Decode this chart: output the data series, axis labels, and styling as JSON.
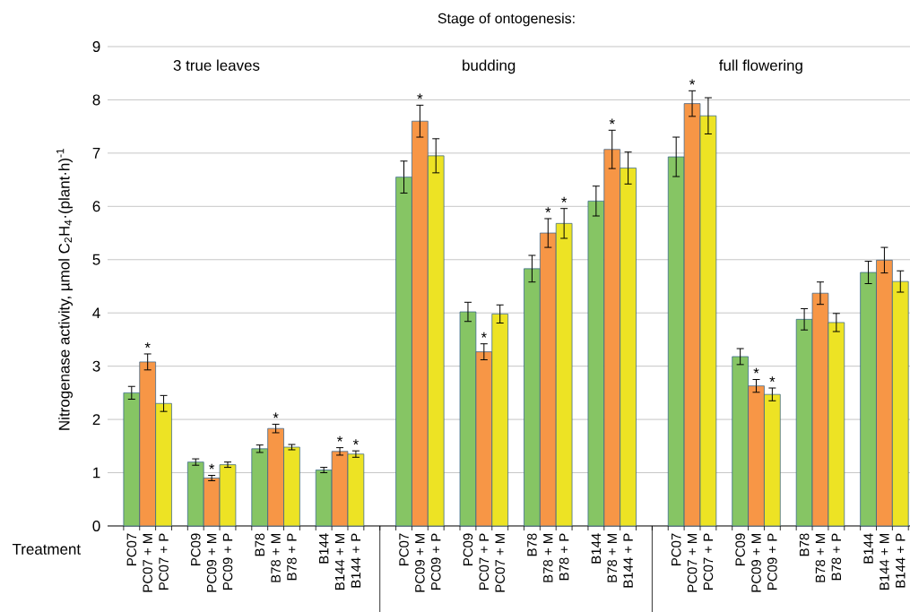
{
  "chart_data": {
    "type": "bar",
    "title": "Stage of ontogenesis:",
    "xlabel": "Treatment",
    "ylabel": "Nitrogenase activity, µmol C$_{2}$H$_{4}$·(plant·h)$^{-1}$",
    "annotations": [
      "3 true leaves",
      "budding",
      "full flowering"
    ],
    "categories": [
      "PC07",
      "PC07 + M",
      "PC07 + P",
      null,
      "PC09",
      "PC09 + M",
      "PC09 + P",
      null,
      "B78",
      "B78 + M",
      "B78 + P",
      null,
      "B144",
      "B144 + M",
      "B144 + P",
      null,
      null,
      "PC07",
      "PC09 + M",
      "PC09 + P",
      null,
      "PC09",
      "PC07 + P",
      "PC07 + M",
      null,
      "B78",
      "B78 + M",
      "B78 + P",
      null,
      "B144",
      "B78 + M",
      "B144 + P",
      null,
      null,
      "PC07",
      "PC07 + M",
      "PC07 + P",
      null,
      "PC09",
      "PC09 + M",
      "PC09 + P",
      null,
      "B78",
      "B78 + M",
      "B78 + P",
      null,
      "B144",
      "B144 + M",
      "B144 + P"
    ],
    "values": [
      2.5,
      3.08,
      2.3,
      null,
      1.2,
      0.9,
      1.15,
      null,
      1.45,
      1.83,
      1.48,
      null,
      1.05,
      1.4,
      1.35,
      null,
      null,
      6.55,
      7.6,
      6.95,
      null,
      4.02,
      3.27,
      3.98,
      null,
      4.83,
      5.5,
      5.68,
      null,
      6.1,
      7.07,
      6.72,
      null,
      null,
      6.93,
      7.93,
      7.7,
      null,
      3.18,
      2.63,
      2.47,
      null,
      3.88,
      4.37,
      3.82,
      null,
      4.76,
      4.99,
      4.59
    ],
    "errors": [
      0.12,
      0.15,
      0.15,
      null,
      0.06,
      0.05,
      0.05,
      null,
      0.07,
      0.08,
      0.05,
      null,
      0.05,
      0.07,
      0.06,
      null,
      null,
      0.3,
      0.3,
      0.32,
      null,
      0.18,
      0.15,
      0.17,
      null,
      0.25,
      0.27,
      0.28,
      null,
      0.28,
      0.36,
      0.3,
      null,
      null,
      0.37,
      0.24,
      0.34,
      null,
      0.15,
      0.12,
      0.12,
      null,
      0.2,
      0.21,
      0.17,
      null,
      0.21,
      0.24,
      0.2
    ],
    "value_labels": [
      null,
      "*",
      null,
      null,
      null,
      "*",
      null,
      null,
      null,
      "*",
      null,
      null,
      null,
      "*",
      "*",
      null,
      null,
      null,
      "*",
      null,
      null,
      null,
      "*",
      null,
      null,
      null,
      "*",
      "*",
      null,
      null,
      "*",
      null,
      null,
      null,
      null,
      "*",
      null,
      null,
      null,
      "*",
      "*",
      null,
      null,
      null,
      null,
      null,
      null,
      null,
      null
    ],
    "colors": [
      "#86c564",
      "#f79646",
      "#ede324",
      null,
      "#86c564",
      "#f79646",
      "#ede324",
      null,
      "#86c564",
      "#f79646",
      "#ede324",
      null,
      "#86c564",
      "#f79646",
      "#ede324",
      null,
      null,
      "#86c564",
      "#f79646",
      "#ede324",
      null,
      "#86c564",
      "#f79646",
      "#ede324",
      null,
      "#86c564",
      "#f79646",
      "#ede324",
      null,
      "#86c564",
      "#f79646",
      "#ede324",
      null,
      null,
      "#86c564",
      "#f79646",
      "#ede324",
      null,
      "#86c564",
      "#f79646",
      "#ede324",
      null,
      "#86c564",
      "#f79646",
      "#ede324",
      null,
      "#86c564",
      "#f79646",
      "#ede324"
    ],
    "ylim": [
      0,
      9
    ],
    "yticks": [
      0,
      1,
      2,
      3,
      4,
      5,
      6,
      7,
      8,
      9
    ],
    "grid": "y"
  }
}
